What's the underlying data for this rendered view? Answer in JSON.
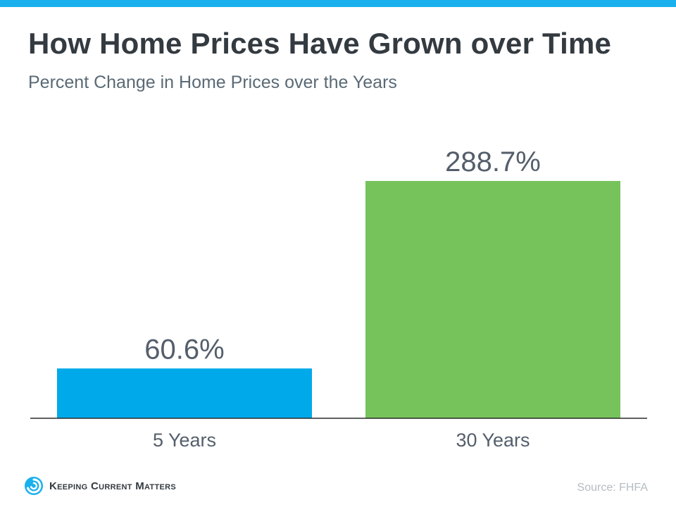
{
  "header": {
    "title": "How Home Prices Have Grown over Time",
    "subtitle": "Percent Change in Home Prices over the Years"
  },
  "chart_data": {
    "type": "bar",
    "title": "How Home Prices Have Grown over Time",
    "subtitle": "Percent Change in Home Prices over the Years",
    "categories": [
      "5 Years",
      "30 Years"
    ],
    "values": [
      60.6,
      288.7
    ],
    "value_labels": [
      "60.6%",
      "288.7%"
    ],
    "bar_colors": [
      "#00aaea",
      "#76c35b"
    ],
    "xlabel": "",
    "ylabel": "",
    "ylim": [
      0,
      310
    ],
    "grid": false,
    "legend": "none"
  },
  "footer": {
    "brand": "Keeping Current Matters",
    "source": "Source: FHFA"
  },
  "colors": {
    "accent": "#1ab0ee",
    "title": "#333a40",
    "text": "#545e6b",
    "source": "#b5bcc2"
  },
  "icons": {
    "logo": "kcm-swirl-logo-icon"
  }
}
